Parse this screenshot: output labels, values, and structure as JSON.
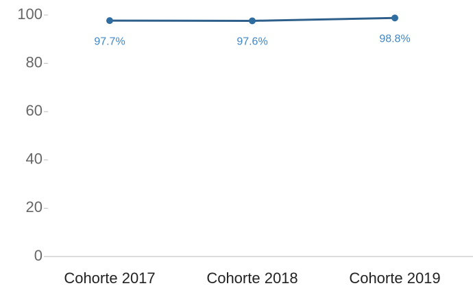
{
  "chart_data": {
    "type": "line",
    "categories": [
      "Cohorte 2017",
      "Cohorte 2018",
      "Cohorte 2019"
    ],
    "values": [
      97.7,
      97.6,
      98.8
    ],
    "value_labels": [
      "97.7%",
      "97.6%",
      "98.8%"
    ],
    "color": "#2e5f8a",
    "ylim": [
      0,
      100
    ],
    "yticks": [
      0,
      20,
      40,
      60,
      80,
      100
    ],
    "grid": false
  }
}
